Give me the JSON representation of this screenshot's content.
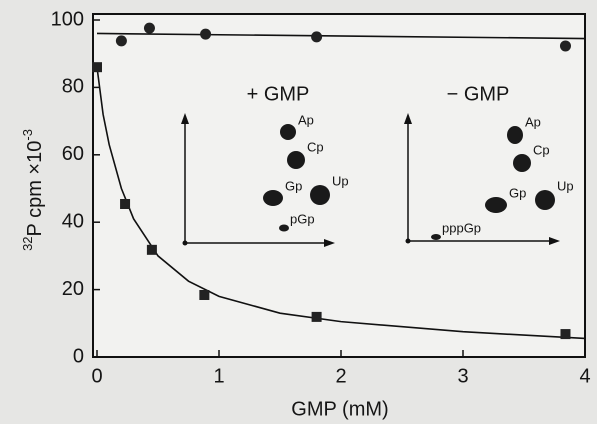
{
  "chart_data": {
    "type": "scatter",
    "x_label": "GMP (mM)",
    "y_label": {
      "isotope": "32",
      "main": "P cpm ×10",
      "exponent": "-3"
    },
    "xlim": [
      0,
      4
    ],
    "xticks": [
      0,
      1,
      2,
      3,
      4
    ],
    "ylim": [
      0,
      100
    ],
    "yticks": [
      0,
      20,
      40,
      60,
      80,
      100
    ],
    "series": [
      {
        "marker": "circle",
        "color": "#222222",
        "x": [
          0.2,
          0.43,
          0.89,
          1.8,
          3.84
        ],
        "values": [
          93.8,
          97.6,
          95.8,
          95,
          92.3
        ]
      },
      {
        "marker": "square",
        "color": "#222222",
        "x": [
          0,
          0.23,
          0.45,
          0.88,
          1.8,
          3.84
        ],
        "values": [
          86,
          45.4,
          31.8,
          18.4,
          11.9,
          6.8
        ]
      }
    ],
    "fits": [
      {
        "x": [
          0,
          4
        ],
        "values": [
          96,
          94.5
        ]
      },
      {
        "x": [
          0,
          0.05,
          0.1,
          0.2,
          0.3,
          0.5,
          0.75,
          1,
          1.5,
          2,
          3,
          4
        ],
        "values": [
          86,
          72,
          63,
          50,
          41,
          30,
          22.5,
          18,
          13,
          10.5,
          7.5,
          5.5
        ]
      }
    ],
    "annotations": {
      "plus": {
        "label": "+ GMP",
        "spots": [
          "Ap",
          "Cp",
          "Gp",
          "Up",
          "pGp"
        ]
      },
      "minus": {
        "label": "− GMP",
        "spots": [
          "Ap",
          "Cp",
          "Gp",
          "Up",
          "pppGp"
        ]
      }
    }
  }
}
